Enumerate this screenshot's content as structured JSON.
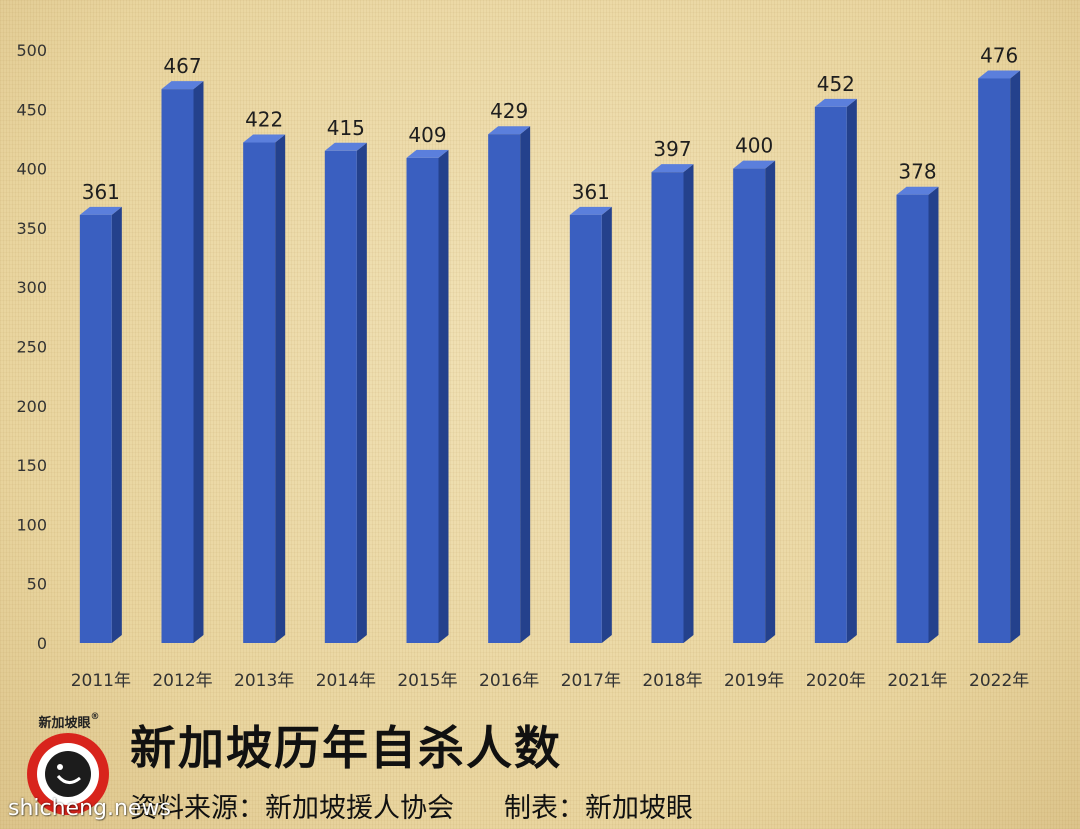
{
  "chart_data": {
    "type": "bar",
    "categories": [
      "2011年",
      "2012年",
      "2013年",
      "2014年",
      "2015年",
      "2016年",
      "2017年",
      "2018年",
      "2019年",
      "2020年",
      "2021年",
      "2022年"
    ],
    "values": [
      361,
      467,
      422,
      415,
      409,
      429,
      361,
      397,
      400,
      452,
      378,
      476
    ],
    "ylim": [
      0,
      500
    ],
    "yticks": [
      0,
      50,
      100,
      150,
      200,
      250,
      300,
      350,
      400,
      450,
      500
    ],
    "grid": false,
    "bar_color": "#3a5fc0"
  },
  "title": "新加坡历年自杀人数",
  "footer": {
    "source": "资料来源：新加坡援人协会",
    "producer": "制表：新加坡眼"
  },
  "logo": {
    "text": "新加坡眼",
    "mark": "®"
  },
  "watermark": "shicheng.news",
  "colors": {
    "logo_ring": "#d8241c",
    "bar_side": "#24418c",
    "bar_top": "#5b7fdc"
  }
}
